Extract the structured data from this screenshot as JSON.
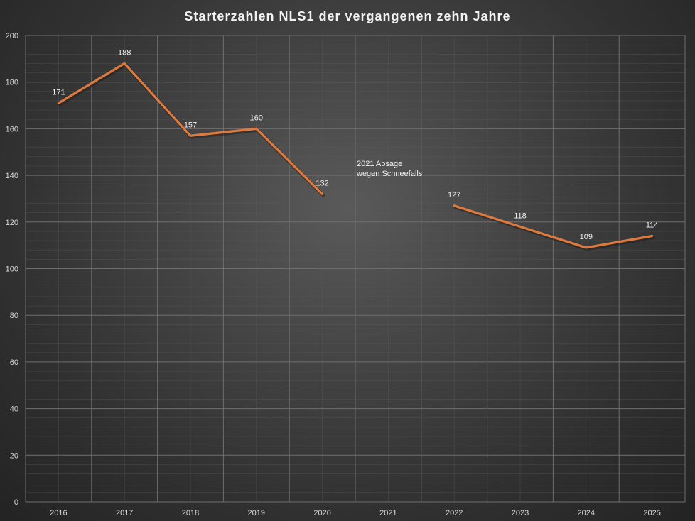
{
  "chart_data": {
    "type": "line",
    "title": "Starterzahlen NLS1 der vergangenen zehn Jahre",
    "categories": [
      "2016",
      "2017",
      "2018",
      "2019",
      "2020",
      "2021",
      "2022",
      "2023",
      "2024",
      "2025"
    ],
    "series": [
      {
        "values": [
          171,
          188,
          157,
          160,
          132,
          null,
          127,
          118,
          109,
          114
        ],
        "color": "#e07a3c"
      }
    ],
    "data_labels": true,
    "ylim": [
      0,
      200
    ],
    "yticks": [
      0,
      20,
      40,
      60,
      80,
      100,
      120,
      140,
      160,
      180,
      200
    ],
    "grid": "major and minor",
    "legend": "none",
    "annotations": [
      {
        "category": "2021",
        "lines": [
          "2021 Absage",
          "wegen Schneefalls"
        ]
      }
    ]
  }
}
